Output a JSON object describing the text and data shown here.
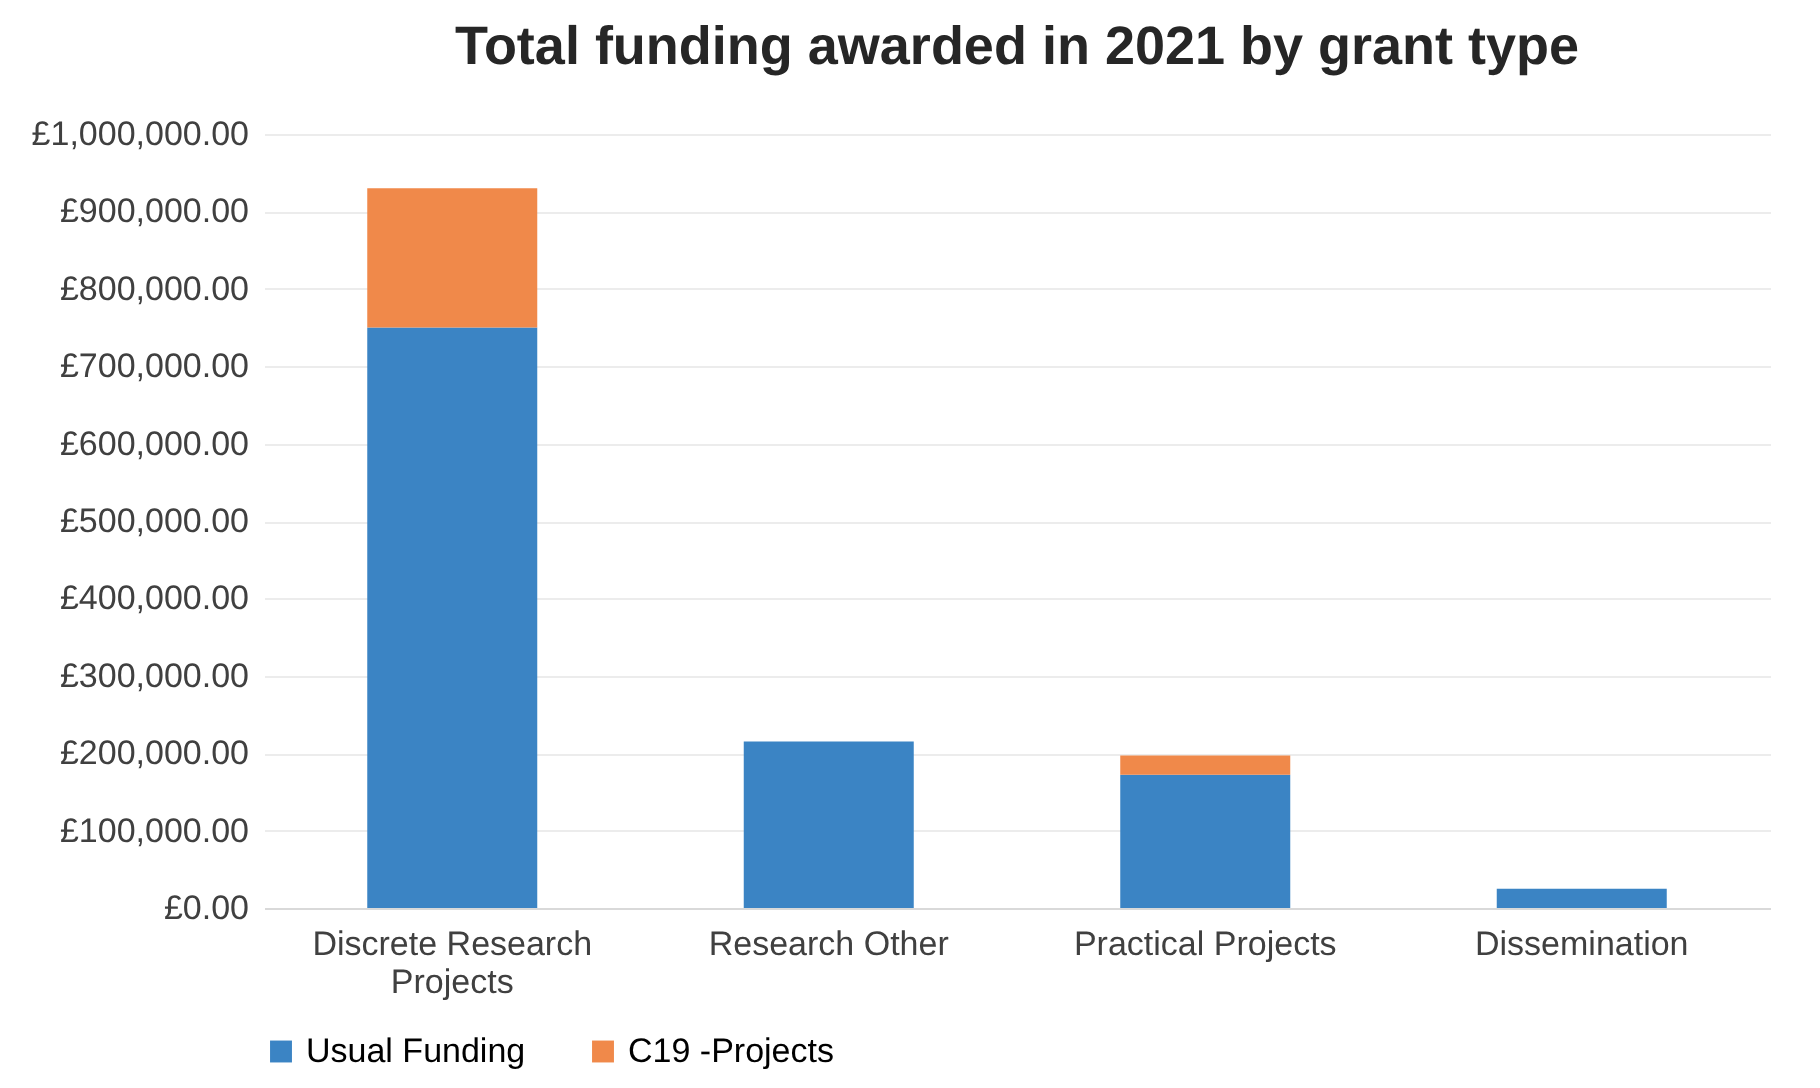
{
  "chart_data": {
    "type": "bar",
    "title": "Total funding awarded in 2021 by grant type",
    "stacked": true,
    "categories": [
      "Discrete Research Projects",
      "Research Other",
      "Practical Projects",
      "Dissemination"
    ],
    "series": [
      {
        "name": "Usual Funding",
        "color": "#3b84c4",
        "values": [
          750000,
          215000,
          172000,
          25000
        ]
      },
      {
        "name": "C19 -Projects",
        "color": "#f0894a",
        "values": [
          180000,
          0,
          25000,
          0
        ]
      }
    ],
    "ylim": [
      0,
      1000000
    ],
    "yticks": [
      {
        "value": 0,
        "label": "£0.00"
      },
      {
        "value": 100000,
        "label": "£100,000.00"
      },
      {
        "value": 200000,
        "label": "£200,000.00"
      },
      {
        "value": 300000,
        "label": "£300,000.00"
      },
      {
        "value": 400000,
        "label": "£400,000.00"
      },
      {
        "value": 500000,
        "label": "£500,000.00"
      },
      {
        "value": 600000,
        "label": "£600,000.00"
      },
      {
        "value": 700000,
        "label": "£700,000.00"
      },
      {
        "value": 800000,
        "label": "£800,000.00"
      },
      {
        "value": 900000,
        "label": "£900,000.00"
      },
      {
        "value": 1000000,
        "label": "£1,000,000.00"
      }
    ],
    "grid": "y",
    "legend": "bottom"
  }
}
